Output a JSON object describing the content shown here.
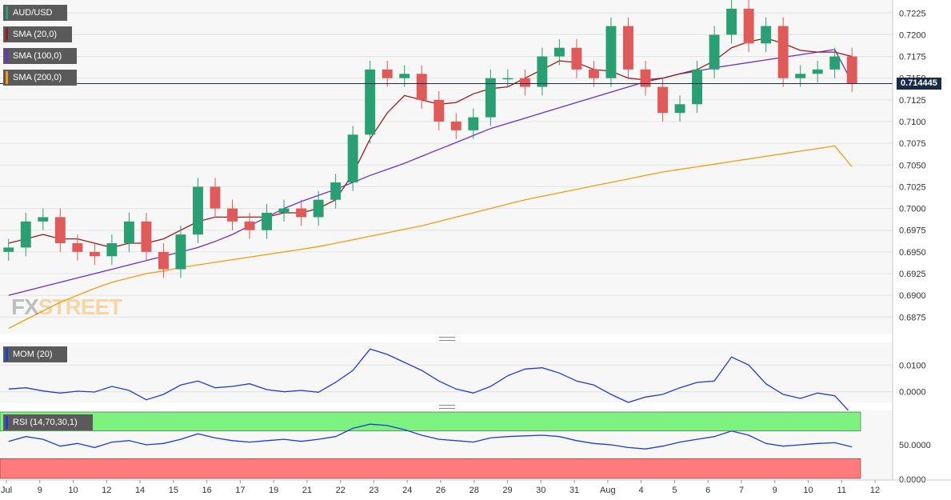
{
  "instrument": "AUD/USD",
  "legend": {
    "pair": {
      "label": "AUD/USD",
      "color": "#29a073"
    },
    "sma20": {
      "label": "SMA (20,0)",
      "color": "#9b1a1a"
    },
    "sma100": {
      "label": "SMA (100,0)",
      "color": "#6a2fd0"
    },
    "sma200": {
      "label": "SMA (200,0)",
      "color": "#f39c12"
    },
    "mom": {
      "label": "MOM (20)",
      "color": "#1e3cd7"
    },
    "rsi": {
      "label": "RSI (14,70,30,1)",
      "color": "#1e3cd7"
    }
  },
  "watermark": {
    "part1": "FX",
    "part2": "STREET"
  },
  "last_price": "0.714445",
  "colors": {
    "bull": "#29a073",
    "bear": "#e05a5a",
    "mom_line": "#1e3cd7",
    "rsi_line": "#1e3cd7",
    "overbought": "#7ef27e",
    "oversold": "#ff7b7b",
    "price_line": "#1a2b4a"
  },
  "chart_data": [
    {
      "type": "candlestick",
      "title": "AUD/USD",
      "ylim": [
        0.6855,
        0.724
      ],
      "y_ticks": [
        "0.7225",
        "0.7200",
        "0.7175",
        "0.7150",
        "0.7125",
        "0.7100",
        "0.7075",
        "0.7050",
        "0.7025",
        "0.7000",
        "0.6975",
        "0.6950",
        "0.6925",
        "0.6900",
        "0.6875"
      ],
      "x_ticks": [
        "Jul",
        "9",
        "10",
        "12",
        "14",
        "15",
        "16",
        "17",
        "19",
        "21",
        "22",
        "23",
        "24",
        "26",
        "28",
        "29",
        "30",
        "31",
        "Aug",
        "4",
        "5",
        "6",
        "7",
        "9",
        "10",
        "11",
        "12"
      ],
      "close_series": [
        0.6955,
        0.6985,
        0.699,
        0.696,
        0.695,
        0.6945,
        0.696,
        0.6985,
        0.695,
        0.693,
        0.697,
        0.7025,
        0.7,
        0.6985,
        0.6975,
        0.6995,
        0.7,
        0.699,
        0.701,
        0.703,
        0.7085,
        0.716,
        0.715,
        0.7155,
        0.7125,
        0.71,
        0.709,
        0.7105,
        0.715,
        0.715,
        0.714,
        0.7175,
        0.7185,
        0.716,
        0.715,
        0.721,
        0.716,
        0.714,
        0.711,
        0.712,
        0.716,
        0.72,
        0.723,
        0.719,
        0.721,
        0.715,
        0.7155,
        0.716,
        0.7175,
        0.7144
      ],
      "series": [
        {
          "name": "SMA (20,0)",
          "values": [
            0.696,
            0.6965,
            0.697,
            0.6965,
            0.6965,
            0.696,
            0.6955,
            0.696,
            0.696,
            0.6965,
            0.6975,
            0.6985,
            0.699,
            0.699,
            0.699,
            0.699,
            0.6995,
            0.6995,
            0.7,
            0.701,
            0.704,
            0.708,
            0.711,
            0.713,
            0.7125,
            0.712,
            0.7122,
            0.7132,
            0.7138,
            0.714,
            0.715,
            0.716,
            0.717,
            0.7168,
            0.716,
            0.7158,
            0.715,
            0.7148,
            0.715,
            0.7155,
            0.716,
            0.717,
            0.7185,
            0.7192,
            0.7196,
            0.719,
            0.7182,
            0.718,
            0.718,
            0.7175
          ]
        },
        {
          "name": "SMA (100,0)",
          "values": [
            0.69,
            0.6905,
            0.691,
            0.6915,
            0.692,
            0.6925,
            0.693,
            0.6935,
            0.694,
            0.6945,
            0.695,
            0.6955,
            0.6962,
            0.697,
            0.698,
            0.699,
            0.7,
            0.7008,
            0.7015,
            0.7022,
            0.703,
            0.7038,
            0.7045,
            0.7052,
            0.706,
            0.7068,
            0.7076,
            0.7084,
            0.7092,
            0.7098,
            0.7104,
            0.711,
            0.7116,
            0.7122,
            0.7128,
            0.7134,
            0.714,
            0.7146,
            0.715,
            0.7155,
            0.7158,
            0.7162,
            0.7165,
            0.7168,
            0.7171,
            0.7174,
            0.7177,
            0.718,
            0.7183,
            0.7145
          ]
        },
        {
          "name": "SMA (200,0)",
          "values": [
            0.6862,
            0.6872,
            0.6882,
            0.6892,
            0.69,
            0.6908,
            0.6915,
            0.692,
            0.6925,
            0.6928,
            0.6932,
            0.6935,
            0.6938,
            0.6941,
            0.6944,
            0.6947,
            0.695,
            0.6953,
            0.6956,
            0.696,
            0.6964,
            0.6968,
            0.6972,
            0.6976,
            0.698,
            0.6985,
            0.699,
            0.6995,
            0.7,
            0.7005,
            0.701,
            0.7014,
            0.7018,
            0.7022,
            0.7026,
            0.703,
            0.7034,
            0.7038,
            0.7042,
            0.7045,
            0.7048,
            0.7051,
            0.7054,
            0.7057,
            0.706,
            0.7063,
            0.7066,
            0.7069,
            0.7072,
            0.7048
          ]
        }
      ]
    },
    {
      "type": "line",
      "title": "MOM (20)",
      "ylim": [
        -0.004,
        0.0185
      ],
      "y_ticks": [
        "0.0100",
        "0.0000"
      ],
      "values": [
        0.001,
        0.0015,
        0.0003,
        -0.0005,
        0.0002,
        -0.0001,
        0.002,
        0.0005,
        -0.003,
        -0.001,
        0.0025,
        0.004,
        0.0015,
        0.002,
        0.003,
        0.0008,
        0.0,
        0.0005,
        -0.0002,
        0.0035,
        0.008,
        0.016,
        0.014,
        0.011,
        0.008,
        0.004,
        0.001,
        -0.0005,
        0.002,
        0.006,
        0.0085,
        0.009,
        0.007,
        0.004,
        0.0025,
        -0.001,
        -0.004,
        -0.002,
        -0.001,
        0.0015,
        0.0035,
        0.004,
        0.013,
        0.01,
        0.003,
        -0.001,
        -0.0025,
        -0.0005,
        -0.0015,
        -0.0085
      ]
    },
    {
      "type": "line",
      "title": "RSI (14,70,30,1)",
      "ylim": [
        0,
        100
      ],
      "y_ticks": [
        "50.0000",
        "0.0000"
      ],
      "bands": {
        "overbought": 70,
        "oversold": 30
      },
      "values": [
        55,
        62,
        58,
        48,
        52,
        46,
        54,
        56,
        50,
        52,
        58,
        66,
        60,
        56,
        54,
        56,
        58,
        55,
        58,
        62,
        74,
        80,
        78,
        72,
        64,
        58,
        56,
        54,
        60,
        62,
        63,
        64,
        62,
        56,
        52,
        50,
        46,
        44,
        48,
        54,
        58,
        62,
        70,
        64,
        52,
        48,
        50,
        52,
        53,
        47
      ]
    }
  ]
}
